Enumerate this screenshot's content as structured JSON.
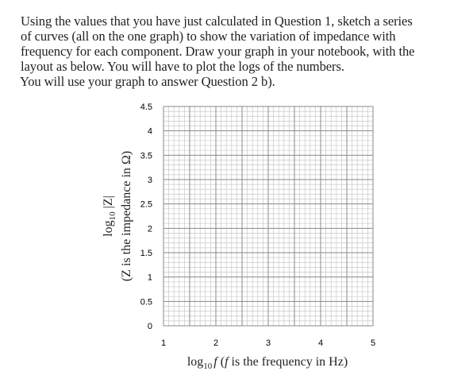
{
  "question_text": {
    "lines": [
      "Using the values that you have just calculated in Question 1, sketch a series",
      "of curves (all on the one graph) to show the variation of impedance with",
      "frequency for each component. Draw your graph in your notebook, with the",
      "layout as below. You will have to plot the logs of the numbers.",
      "You will use your graph to answer Question 2 b)."
    ]
  },
  "chart_data": {
    "type": "line",
    "series": [],
    "x_ticks": [
      "1",
      "2",
      "3",
      "4",
      "5"
    ],
    "y_ticks": [
      "0",
      "0.5",
      "1",
      "1.5",
      "2",
      "2.5",
      "3",
      "3.5",
      "4",
      "4.5"
    ],
    "xlim": [
      1,
      5
    ],
    "ylim": [
      0,
      4.5
    ],
    "grid": true,
    "xlabel": {
      "prefix": "log",
      "subscript": "10",
      "italic": "f",
      "rest_open": " (",
      "rest_italic": "f",
      "rest_close": " is the frequency in Hz)"
    },
    "ylabel": {
      "line1_prefix": "log",
      "line1_subscript": "10",
      "line1_rest": " |Z|",
      "line2": "(Z is the impedance in Ω)"
    }
  }
}
